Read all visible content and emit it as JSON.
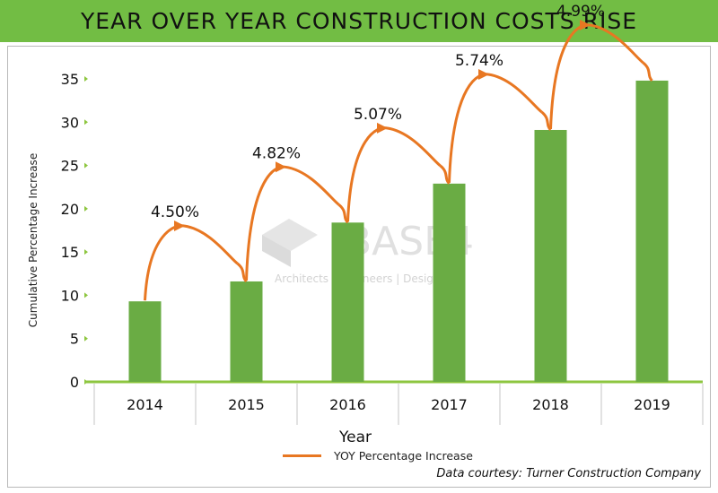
{
  "colors": {
    "banner": "#72bd44",
    "bar": "#6aac44",
    "arrow": "#e87722",
    "axis_tick": "#8dc63f"
  },
  "watermark": {
    "brand": "BASE4",
    "tagline": "Architects | Engineers | Designers"
  },
  "footer": {
    "credit": "Data courtesy: Turner Construction Company"
  },
  "chart_data": {
    "type": "bar",
    "title": "YEAR OVER YEAR CONSTRUCTION COSTS RISE",
    "xlabel": "Year",
    "ylabel": "Cumulative Percentage Increase",
    "categories": [
      "2014",
      "2015",
      "2016",
      "2017",
      "2018",
      "2019"
    ],
    "values": [
      9.3,
      11.6,
      18.4,
      22.9,
      29.1,
      34.8
    ],
    "ylim": [
      0,
      35
    ],
    "yticks": [
      0,
      5,
      10,
      15,
      20,
      25,
      30,
      35
    ],
    "grid": false,
    "annotations": [
      {
        "from": "2014",
        "to": "2015",
        "label": "4.50%"
      },
      {
        "from": "2015",
        "to": "2016",
        "label": "4.82%"
      },
      {
        "from": "2016",
        "to": "2017",
        "label": "5.07%"
      },
      {
        "from": "2017",
        "to": "2018",
        "label": "5.74%"
      },
      {
        "from": "2018",
        "to": "2019",
        "label": "4.99%"
      }
    ],
    "legend": {
      "position": "bottom-center",
      "entries": [
        {
          "name": "YOY Percentage Increase",
          "type": "line"
        }
      ]
    }
  }
}
